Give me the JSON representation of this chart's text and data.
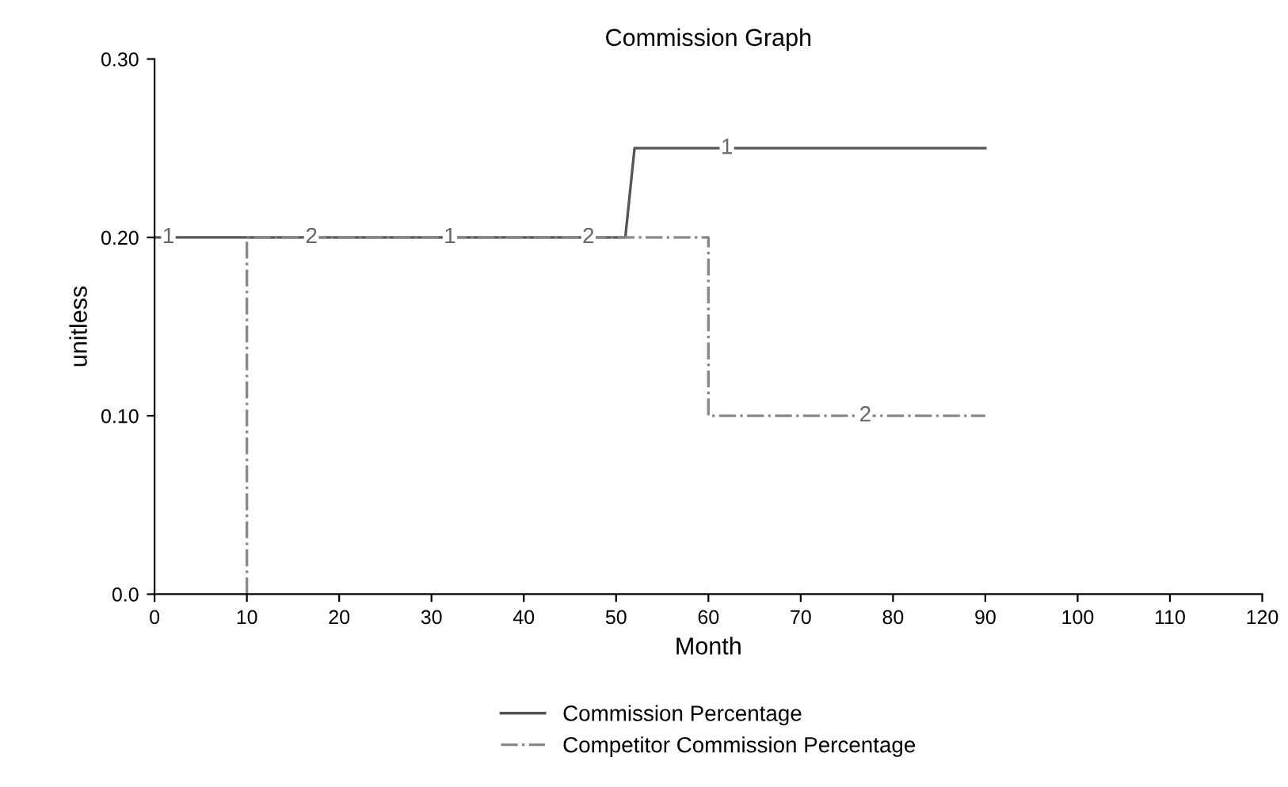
{
  "chart_data": {
    "type": "step",
    "title": "Commission Graph",
    "xlabel": "Month",
    "ylabel": "unitless",
    "series": [
      {
        "name": "Commission Percentage",
        "color": "#555555",
        "line_style": "solid",
        "x": [
          0,
          51,
          52,
          90
        ],
        "values": [
          0.2,
          0.2,
          0.25,
          0.25
        ]
      },
      {
        "name": "Competitor Commission Percentage",
        "color": "#888888",
        "line_style": "dashdot",
        "x": [
          10,
          10,
          60,
          60,
          90
        ],
        "values": [
          0,
          0.2,
          0.2,
          0.1,
          0.1
        ]
      }
    ],
    "annotations": [
      {
        "text": "1",
        "x": 1.5,
        "y": 0.2
      },
      {
        "text": "2",
        "x": 17,
        "y": 0.2
      },
      {
        "text": "1",
        "x": 32,
        "y": 0.2
      },
      {
        "text": "2",
        "x": 47,
        "y": 0.2
      },
      {
        "text": "1",
        "x": 62,
        "y": 0.25
      },
      {
        "text": "2",
        "x": 77,
        "y": 0.1
      }
    ],
    "xlim": [
      0,
      120
    ],
    "xticks": [
      0,
      10,
      20,
      30,
      40,
      50,
      60,
      70,
      80,
      90,
      100,
      110,
      120
    ],
    "ylim": [
      0,
      0.3
    ],
    "yticks": [
      {
        "value": 0,
        "label": "0.0"
      },
      {
        "value": 0.1,
        "label": "0.10"
      },
      {
        "value": 0.2,
        "label": "0.20"
      },
      {
        "value": 0.3,
        "label": "0.30"
      }
    ],
    "legend": "bottom",
    "grid": false
  }
}
